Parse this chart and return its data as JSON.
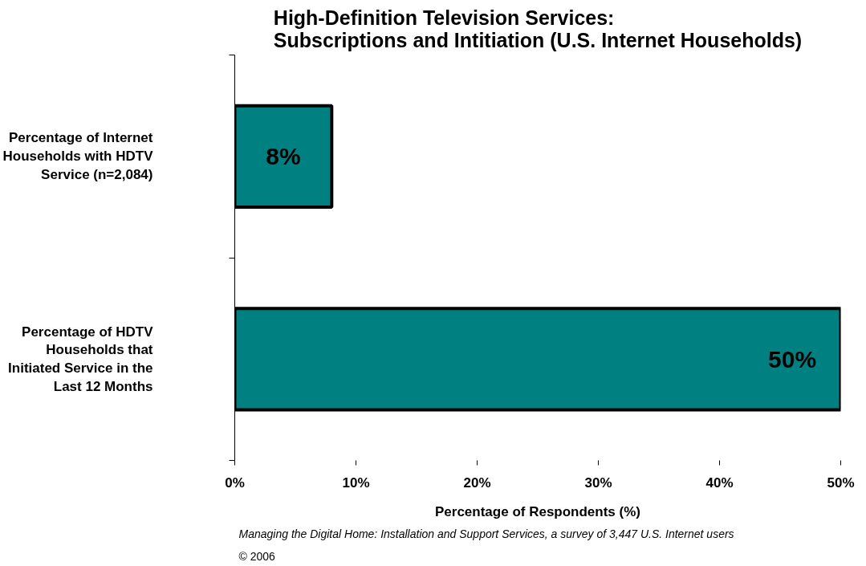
{
  "chart_data": {
    "type": "bar",
    "orientation": "horizontal",
    "title": "High-Definition Television Services:\nSubscriptions and Intitiation (U.S. Internet Households)",
    "xlabel": "Percentage of Respondents (%)",
    "categories": [
      "Percentage of Internet Households with HDTV Service (n=2,084)",
      "Percentage of HDTV Households that Initiated Service in the Last 12 Months"
    ],
    "values": [
      8,
      50
    ],
    "value_labels": [
      "8%",
      "50%"
    ],
    "color": "#008080",
    "xlim": [
      0,
      50
    ],
    "xticks": [
      {
        "value": 0,
        "label": "0%"
      },
      {
        "value": 10,
        "label": "10%"
      },
      {
        "value": 20,
        "label": "20%"
      },
      {
        "value": 30,
        "label": "30%"
      },
      {
        "value": 40,
        "label": "40%"
      },
      {
        "value": 50,
        "label": "50%"
      }
    ],
    "grid": false,
    "annotations": [
      "Managing the Digital Home: Installation and Support Services, a survey of 3,447 U.S. Internet users",
      "© 2006"
    ]
  }
}
